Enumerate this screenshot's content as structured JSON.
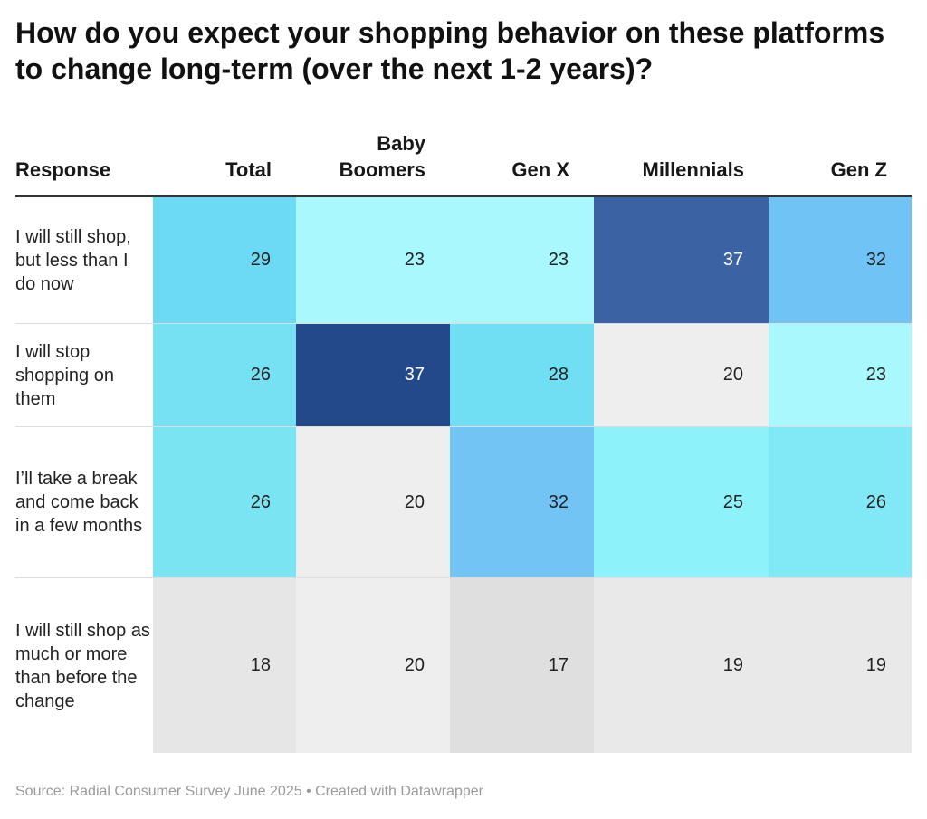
{
  "title": "How do you expect your shopping behavior on these platforms to change long-term (over the next 1-2 years)?",
  "source": "Source: Radial Consumer Survey June 2025 • Created with Datawrapper",
  "chart_data": {
    "type": "table",
    "title": "How do you expect your shopping behavior on these platforms to change long-term (over the next 1-2 years)?",
    "columns": [
      "Response",
      "Total",
      "Baby Boomers",
      "Gen X",
      "Millennials",
      "Gen Z"
    ],
    "rows": [
      {
        "label": "I will still shop, but less than I do now",
        "values": [
          29,
          23,
          23,
          37,
          32
        ]
      },
      {
        "label": "I will stop shopping on them",
        "values": [
          26,
          37,
          28,
          20,
          23
        ]
      },
      {
        "label": "I’ll take a break and come back in a few months",
        "values": [
          26,
          20,
          32,
          25,
          26
        ]
      },
      {
        "label": "I will still shop as much or more than before the change",
        "values": [
          18,
          20,
          17,
          19,
          19
        ]
      }
    ],
    "colors": [
      [
        "#6ddaf5",
        "#a8f8fd",
        "#a8f8fd",
        "#3b63a3",
        "#70c3f5"
      ],
      [
        "#76e1f3",
        "#24498a",
        "#70dff4",
        "#eeeeee",
        "#a8f8fd"
      ],
      [
        "#7be4f3",
        "#eeeeee",
        "#72c4f4",
        "#8ef2fb",
        "#80e9f5"
      ],
      [
        "#e6e6e6",
        "#eeeeee",
        "#dfdfdf",
        "#e9e9e9",
        "#e9e9e9"
      ]
    ],
    "dark_text_color": "#222222",
    "light_text_color": "#ffffff"
  }
}
